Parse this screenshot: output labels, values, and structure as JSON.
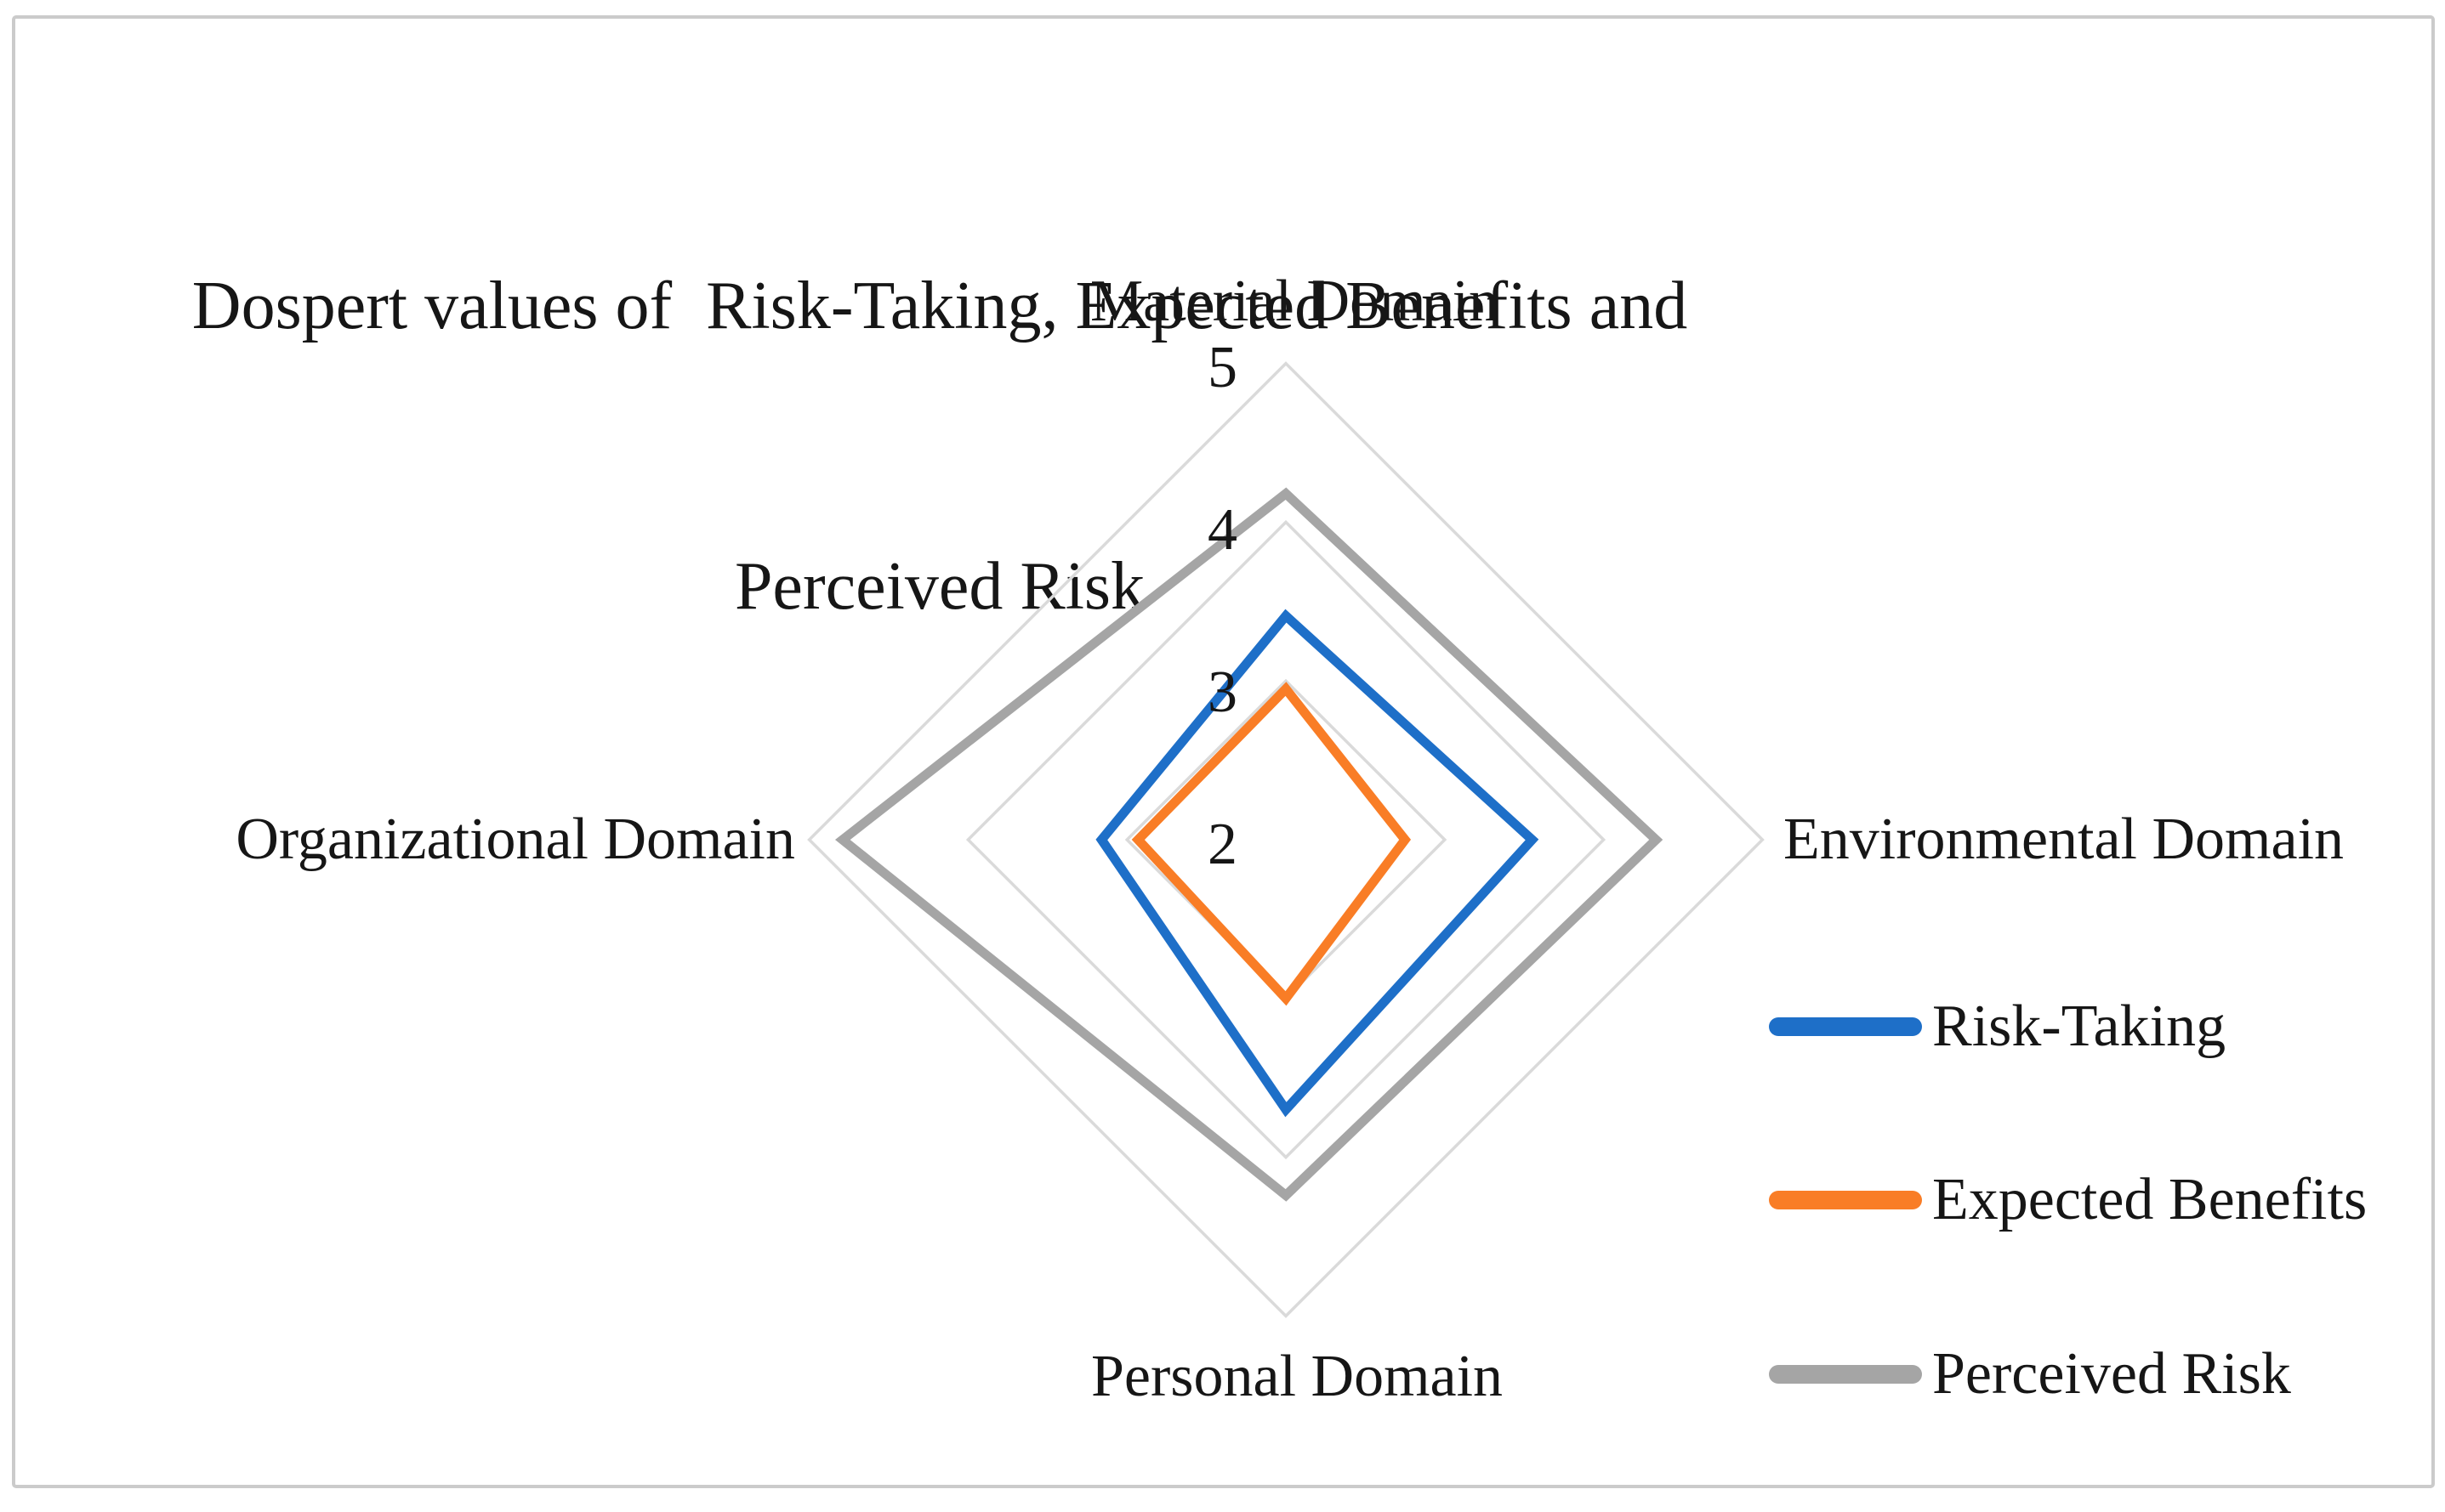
{
  "canvas": {
    "background": "#FFFFFF",
    "border_color": "#CBCBCB"
  },
  "title": {
    "line1": "Dospert values of  Risk-Taking, Expected Benefits and",
    "line2": "Perceived Risk"
  },
  "axis_labels": {
    "top": "Material Domain",
    "right": "Environmental Domain",
    "bottom": "Personal Domain",
    "left": "Organizational Domain"
  },
  "scale_tick_labels": [
    "5",
    "4",
    "3",
    "2"
  ],
  "legend": {
    "items": [
      {
        "label": "Risk-Taking",
        "color": "#1E6FC8"
      },
      {
        "label": "Expected Benefits",
        "color": "#F97D26"
      },
      {
        "label": "Perceived Risk",
        "color": "#A5A5A5"
      }
    ]
  },
  "chart_data": {
    "type": "radar",
    "title": "Dospert values of Risk-Taking, Expected Benefits and Perceived Risk",
    "axes": [
      "Material Domain",
      "Environmental Domain",
      "Personal Domain",
      "Organizational Domain"
    ],
    "scale": {
      "min": 2,
      "max": 5,
      "gridlines_at": [
        3,
        4,
        5
      ],
      "tick_labels_shown": [
        "5",
        "4",
        "3",
        "2"
      ],
      "gridline_color": "#DADADA"
    },
    "series": [
      {
        "name": "Risk-Taking",
        "color": "#1E6FC8",
        "values": [
          3.41,
          3.55,
          3.7,
          3.16
        ]
      },
      {
        "name": "Expected Benefits",
        "color": "#F97D26",
        "values": [
          2.95,
          2.75,
          3.0,
          2.93
        ]
      },
      {
        "name": "Perceived Risk",
        "color": "#A5A5A5",
        "values": [
          4.18,
          4.33,
          4.24,
          4.79
        ]
      }
    ],
    "legend_position": "right",
    "grid": true
  }
}
